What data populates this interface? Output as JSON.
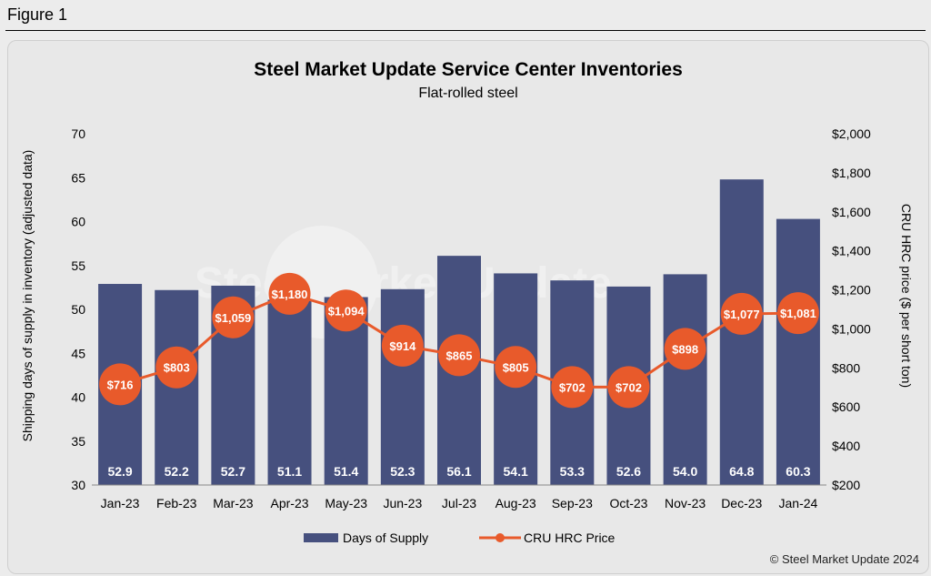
{
  "figure_label": "Figure 1",
  "credit": "© Steel Market Update 2024",
  "watermark": "Steel Market Update",
  "colors": {
    "bar": "#46507e",
    "line": "#e85a2b",
    "marker": "#e85a2b"
  },
  "chart_data": {
    "type": "bar",
    "title": "Steel Market Update Service Center Inventories",
    "subtitle": "Flat-rolled steel",
    "categories": [
      "Jan-23",
      "Feb-23",
      "Mar-23",
      "Apr-23",
      "May-23",
      "Jun-23",
      "Jul-23",
      "Aug-23",
      "Sep-23",
      "Oct-23",
      "Nov-23",
      "Dec-23",
      "Jan-24"
    ],
    "series": [
      {
        "name": "Days of Supply",
        "type": "bar",
        "axis": "left",
        "values": [
          52.9,
          52.2,
          52.7,
          51.1,
          51.4,
          52.3,
          56.1,
          54.1,
          53.3,
          52.6,
          54.0,
          64.8,
          60.3
        ],
        "labels": [
          "52.9",
          "52.2",
          "52.7",
          "51.1",
          "51.4",
          "52.3",
          "56.1",
          "54.1",
          "53.3",
          "52.6",
          "54.0",
          "64.8",
          "60.3"
        ]
      },
      {
        "name": "CRU HRC Price",
        "type": "line",
        "axis": "right",
        "values": [
          716,
          803,
          1059,
          1180,
          1094,
          914,
          865,
          805,
          702,
          702,
          898,
          1077,
          1081
        ],
        "labels": [
          "$716",
          "$803",
          "$1,059",
          "$1,180",
          "$1,094",
          "$914",
          "$865",
          "$805",
          "$702",
          "$702",
          "$898",
          "$1,077",
          "$1,081"
        ]
      }
    ],
    "ylabel": "Shipping days of supply in inventory (adjusted data)",
    "y2label": "CRU HRC price ($ per short ton)",
    "ylim": [
      30,
      70
    ],
    "y2lim": [
      200,
      2000
    ],
    "yticks": [
      "70",
      "65",
      "60",
      "55",
      "50",
      "45",
      "40",
      "35",
      "30"
    ],
    "y2ticks": [
      "$2,000",
      "$1,800",
      "$1,600",
      "$1,400",
      "$1,200",
      "$1,000",
      "$800",
      "$600",
      "$400",
      "$200"
    ],
    "legend": [
      "Days of Supply",
      "CRU HRC Price"
    ],
    "legend_position": "bottom",
    "grid": false
  }
}
